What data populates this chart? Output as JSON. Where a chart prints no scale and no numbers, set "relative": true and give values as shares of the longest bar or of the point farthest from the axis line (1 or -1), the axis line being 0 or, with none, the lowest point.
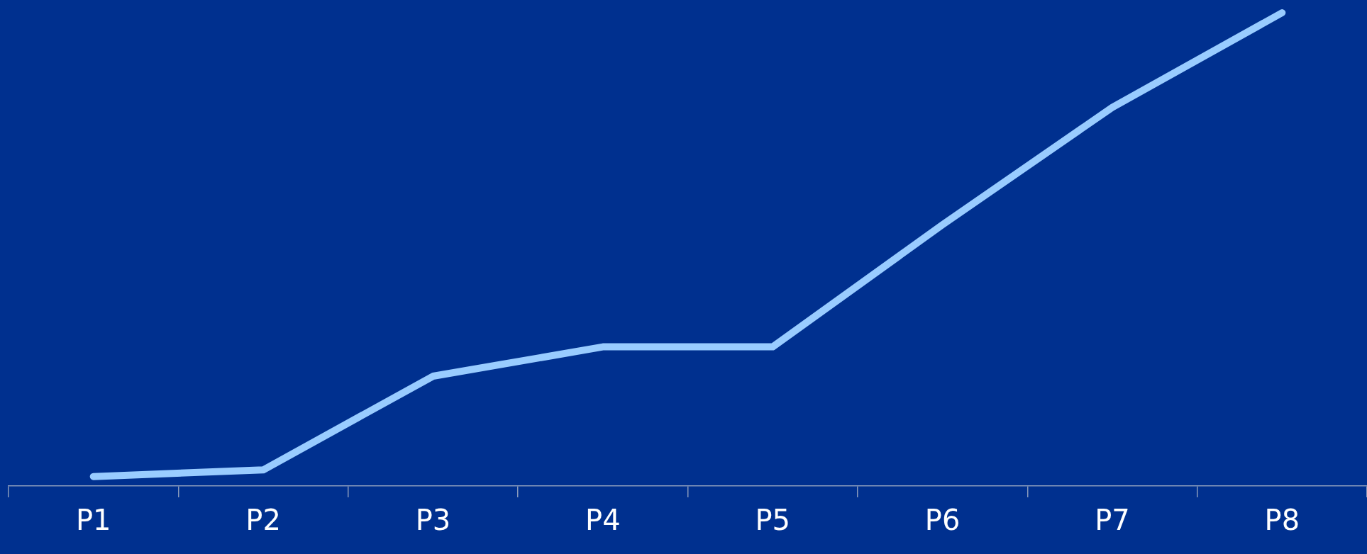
{
  "chart_data": {
    "type": "line",
    "relative": true,
    "categories": [
      "P1",
      "P2",
      "P3",
      "P4",
      "P5",
      "P6",
      "P7",
      "P8"
    ],
    "series": [
      {
        "color": "#99ccff",
        "values": [
          0.02,
          0.034,
          0.232,
          0.294,
          0.294,
          0.552,
          0.8,
          1
        ]
      }
    ],
    "grid": false,
    "legend": false,
    "marker": "none",
    "line_style": "solid"
  }
}
